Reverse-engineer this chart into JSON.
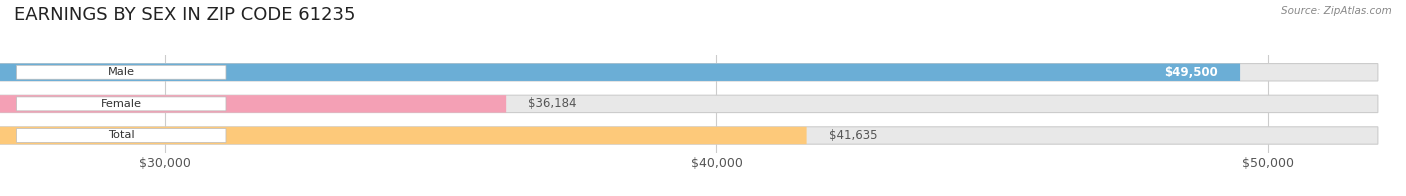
{
  "title": "EARNINGS BY SEX IN ZIP CODE 61235",
  "source": "Source: ZipAtlas.com",
  "categories": [
    "Male",
    "Female",
    "Total"
  ],
  "values": [
    49500,
    36184,
    41635
  ],
  "bar_colors": [
    "#6baed6",
    "#f4a0b5",
    "#fdc97a"
  ],
  "value_labels": [
    "$49,500",
    "$36,184",
    "$41,635"
  ],
  "value_label_inside": [
    true,
    false,
    false
  ],
  "x_ticks": [
    30000,
    40000,
    50000
  ],
  "x_tick_labels": [
    "$30,000",
    "$40,000",
    "$50,000"
  ],
  "x_min": 27000,
  "x_max": 52000,
  "bar_background_color": "#e8e8e8",
  "title_fontsize": 13,
  "tick_fontsize": 9,
  "bar_height": 0.55
}
